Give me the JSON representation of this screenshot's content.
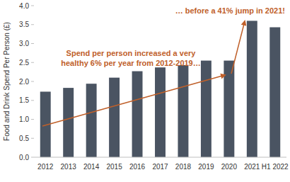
{
  "chart_data": {
    "type": "bar",
    "y_label": "Food and Drink Spend Per Person (£)",
    "categories": [
      "2012",
      "2013",
      "2014",
      "2015",
      "2016",
      "2017",
      "2018",
      "2019",
      "2020",
      "2021",
      "H1 2022"
    ],
    "values": [
      1.73,
      1.83,
      1.94,
      2.1,
      2.27,
      2.37,
      2.43,
      2.55,
      2.55,
      3.6,
      3.43
    ],
    "color": "#4a5462",
    "ylim": [
      0,
      4
    ],
    "yticks": [
      {
        "value": 0,
        "label": "0.0"
      },
      0.5,
      {
        "value": 1,
        "label": "1.0"
      },
      1.5,
      {
        "value": 2,
        "label": "2.0"
      },
      2.5,
      {
        "value": 3,
        "label": "3.0"
      },
      3.5,
      {
        "value": 4,
        "label": "4.0"
      }
    ],
    "grid": false,
    "annotations": [
      [
        "Spend per person increased a very",
        "healthy 6% per year from 2012-2019…"
      ],
      [
        "… before a 41% jump in 2021!"
      ]
    ]
  }
}
